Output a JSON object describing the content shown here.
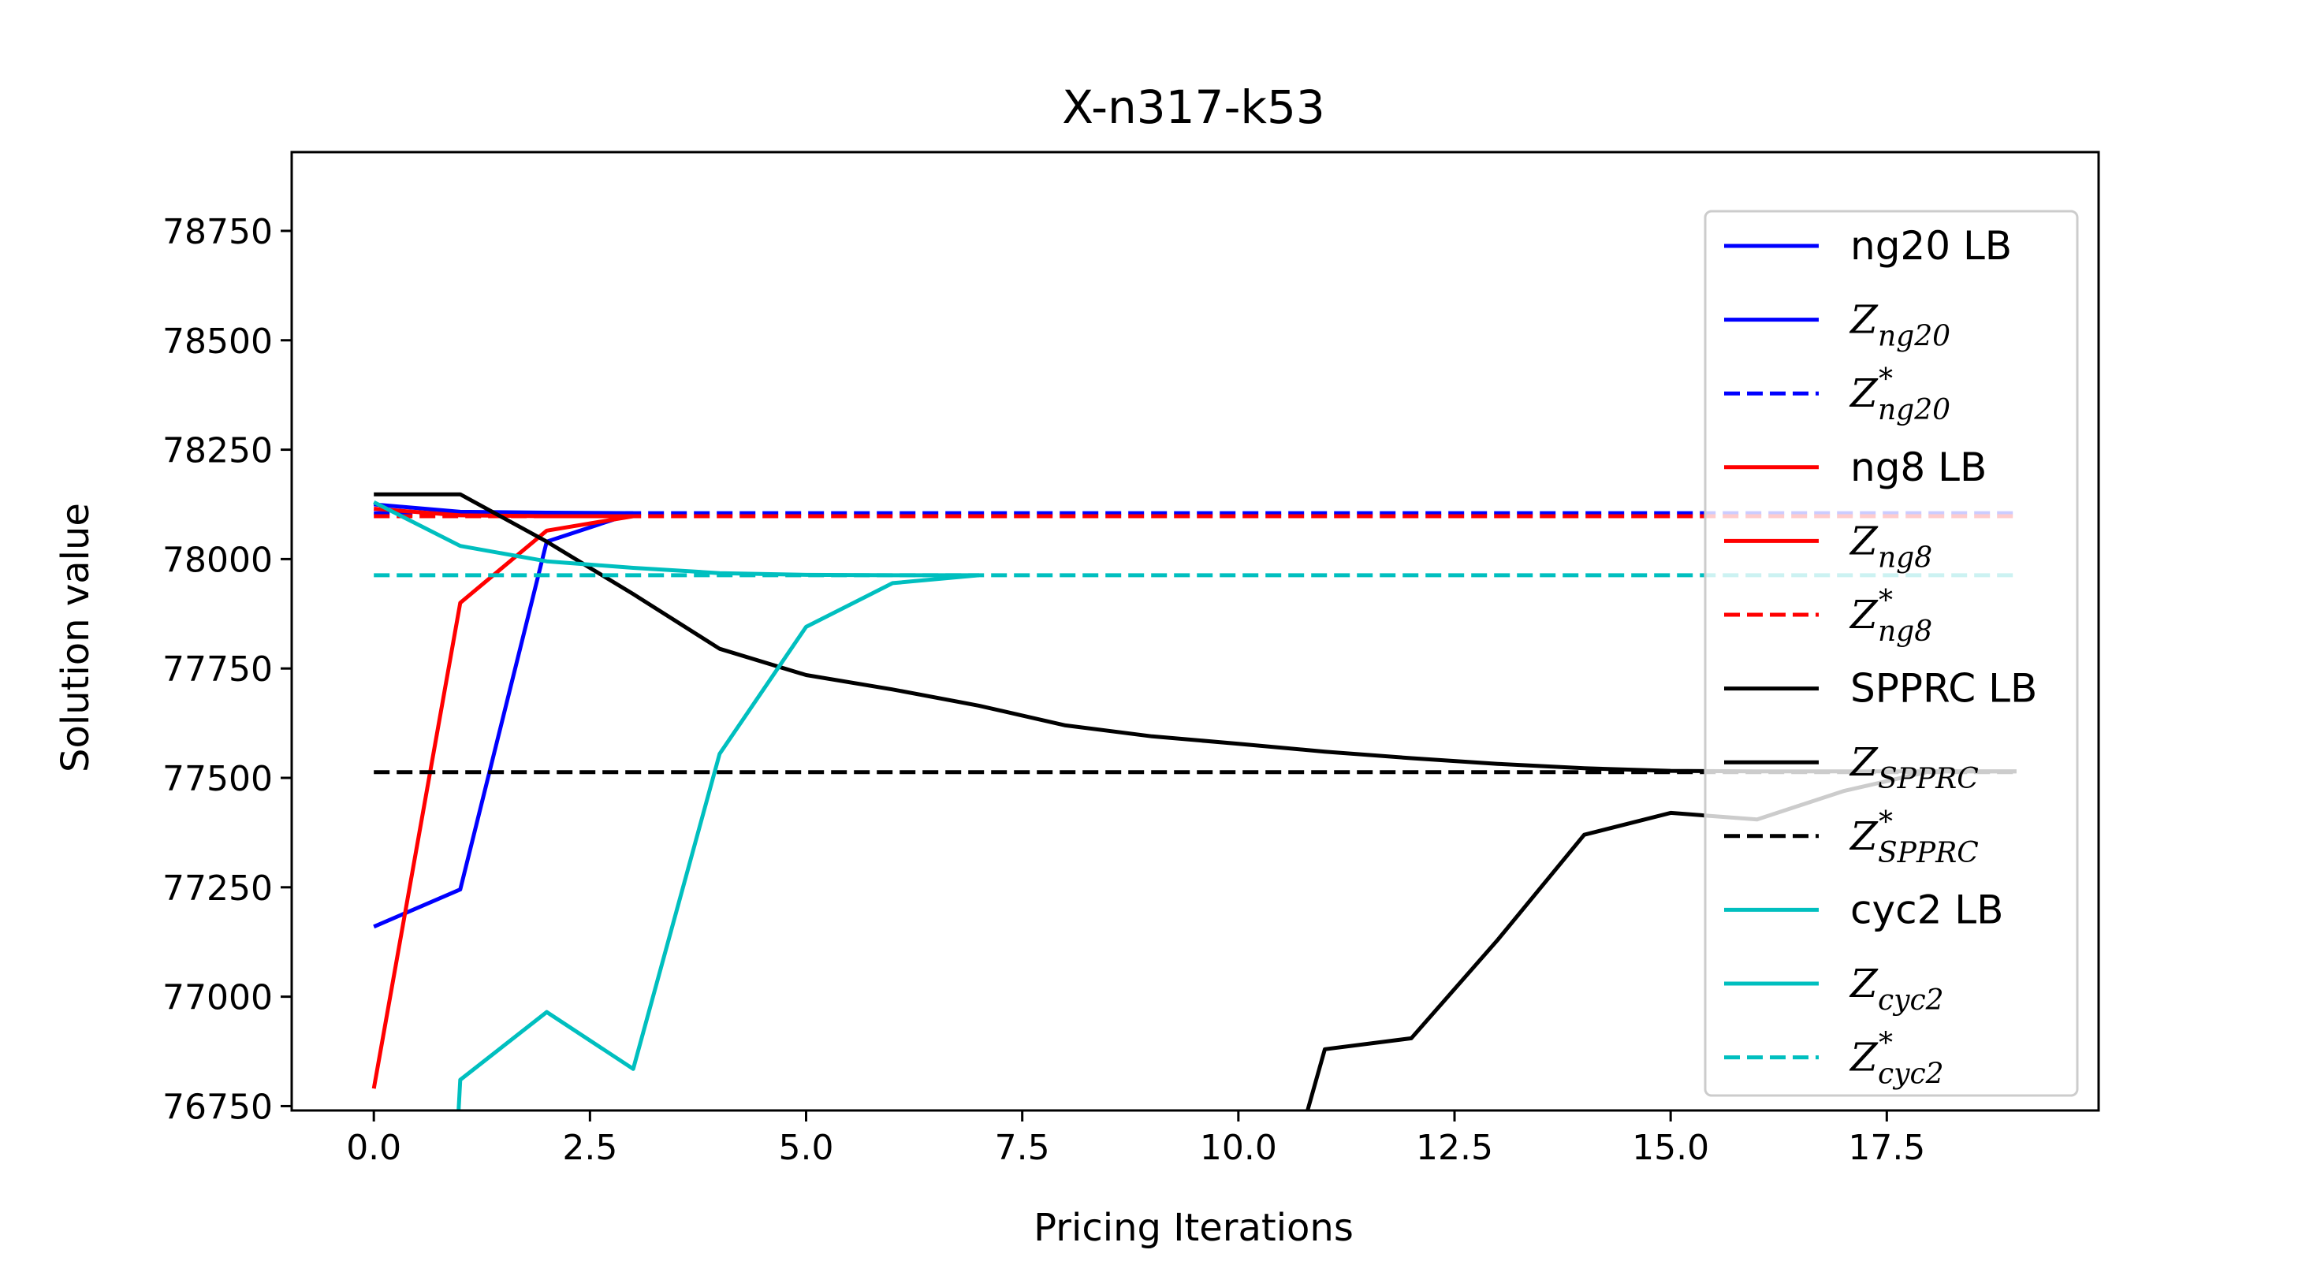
{
  "chart_data": {
    "type": "line",
    "title": "X-n317-k53",
    "xlabel": "Pricing Iterations",
    "ylabel": "Solution value",
    "xlim": [
      -0.95,
      19.95
    ],
    "ylim": [
      76740,
      78930
    ],
    "xticks": [
      0.0,
      2.5,
      5.0,
      7.5,
      10.0,
      12.5,
      15.0,
      17.5
    ],
    "xtick_labels": [
      "0.0",
      "2.5",
      "5.0",
      "7.5",
      "10.0",
      "12.5",
      "15.0",
      "17.5"
    ],
    "yticks": [
      76750,
      77000,
      77250,
      77500,
      77750,
      78000,
      78250,
      78500,
      78750
    ],
    "ytick_labels": [
      "76750",
      "77000",
      "77250",
      "77500",
      "77750",
      "78000",
      "78250",
      "78500",
      "78750"
    ],
    "legend_position": "right",
    "series": [
      {
        "name": "ng20 LB",
        "color": "#0000ff",
        "dash": "solid",
        "x": [
          0,
          1,
          2,
          3
        ],
        "y": [
          77160,
          77245,
          78040,
          78105
        ]
      },
      {
        "name_base": "Z",
        "name_sup": "",
        "name_sub": "ng20",
        "color": "#0000ff",
        "dash": "solid",
        "x": [
          0,
          1,
          2,
          3
        ],
        "y": [
          78125,
          78108,
          78106,
          78105
        ]
      },
      {
        "name_base": "Z",
        "name_sup": "*",
        "name_sub": "ng20",
        "color": "#0000ff",
        "dash": "dashed",
        "x": [
          0,
          19
        ],
        "y": [
          78105,
          78105
        ]
      },
      {
        "name": "ng8 LB",
        "color": "#ff0000",
        "dash": "solid",
        "x": [
          0,
          1,
          2,
          3
        ],
        "y": [
          76790,
          77900,
          78065,
          78098
        ]
      },
      {
        "name_base": "Z",
        "name_sup": "",
        "name_sub": "ng8",
        "color": "#ff0000",
        "dash": "solid",
        "x": [
          0,
          1,
          2,
          3
        ],
        "y": [
          78115,
          78100,
          78098,
          78098
        ]
      },
      {
        "name_base": "Z",
        "name_sup": "*",
        "name_sub": "ng8",
        "color": "#ff0000",
        "dash": "dashed",
        "x": [
          0,
          19
        ],
        "y": [
          78098,
          78098
        ]
      },
      {
        "name": "SPPRC LB",
        "color": "#000000",
        "dash": "solid",
        "x": [
          10.8,
          11,
          12,
          13,
          14,
          15,
          16,
          17,
          18,
          19
        ],
        "y": [
          76740,
          76880,
          76905,
          77130,
          77370,
          77420,
          77405,
          77470,
          77515,
          77515
        ]
      },
      {
        "name_base": "Z",
        "name_sup": "",
        "name_sub": "SPPRC",
        "color": "#000000",
        "dash": "solid",
        "x": [
          0,
          1,
          2,
          3,
          4,
          5,
          6,
          7,
          8,
          9,
          10,
          11,
          12,
          13,
          14,
          15,
          16,
          17,
          18,
          19
        ],
        "y": [
          78148,
          78148,
          78040,
          77920,
          77795,
          77735,
          77702,
          77665,
          77620,
          77595,
          77578,
          77560,
          77545,
          77532,
          77522,
          77516,
          77515,
          77515,
          77515,
          77515
        ]
      },
      {
        "name_base": "Z",
        "name_sup": "*",
        "name_sub": "SPPRC",
        "color": "#000000",
        "dash": "dashed",
        "x": [
          0,
          19
        ],
        "y": [
          77513,
          77513
        ]
      },
      {
        "name": "cyc2 LB",
        "color": "#00bfbf",
        "dash": "solid",
        "x": [
          0.98,
          1,
          2,
          3,
          4,
          5,
          6,
          7
        ],
        "y": [
          76740,
          76810,
          76965,
          76835,
          77555,
          77845,
          77945,
          77963
        ]
      },
      {
        "name_base": "Z",
        "name_sup": "",
        "name_sub": "cyc2",
        "color": "#00bfbf",
        "dash": "solid",
        "x": [
          0,
          1,
          2,
          3,
          4,
          5,
          6,
          7
        ],
        "y": [
          78130,
          78030,
          77995,
          77980,
          77968,
          77964,
          77963,
          77963
        ]
      },
      {
        "name_base": "Z",
        "name_sup": "*",
        "name_sub": "cyc2",
        "color": "#00bfbf",
        "dash": "dashed",
        "x": [
          0,
          19
        ],
        "y": [
          77963,
          77963
        ]
      }
    ]
  }
}
